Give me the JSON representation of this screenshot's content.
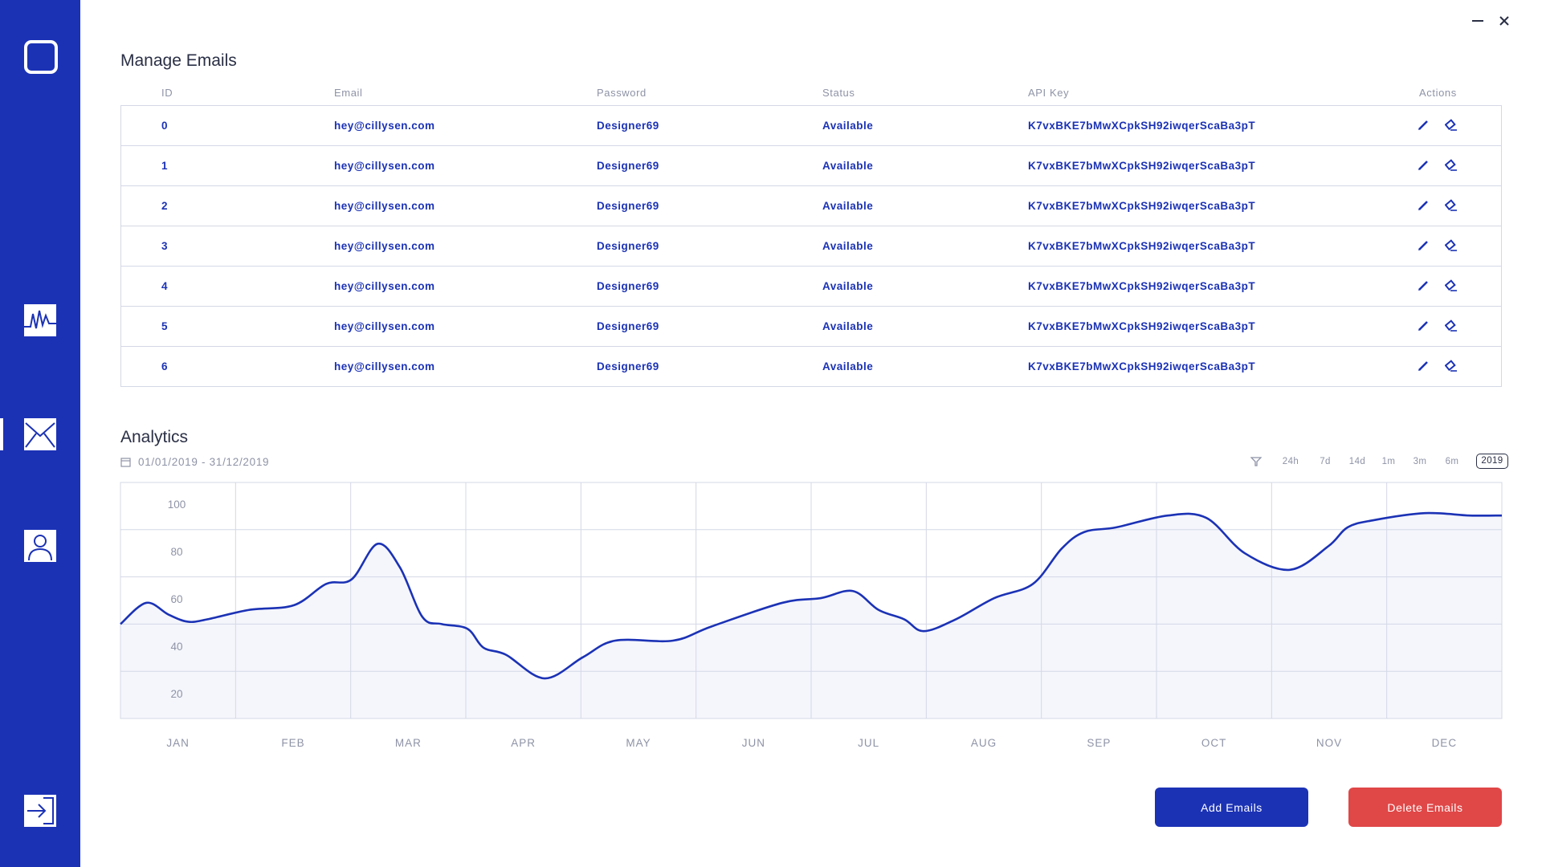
{
  "sidebar": {
    "items": [
      {
        "icon": "logo-icon"
      },
      {
        "icon": "activity-icon"
      },
      {
        "icon": "mail-icon",
        "active": true
      },
      {
        "icon": "user-icon"
      },
      {
        "icon": "logout-icon"
      }
    ],
    "accent": "#1b32b5"
  },
  "window": {
    "controls": [
      "minimize-icon",
      "close-icon"
    ]
  },
  "emails": {
    "title": "Manage Emails",
    "columns": [
      "ID",
      "Email",
      "Password",
      "Status",
      "API Key",
      "Actions"
    ],
    "rows": [
      {
        "id": "0",
        "email": "hey@cillysen.com",
        "password": "Designer69",
        "status": "Available",
        "api_key": "K7vxBKE7bMwXCpkSH92iwqerScaBa3pT"
      },
      {
        "id": "1",
        "email": "hey@cillysen.com",
        "password": "Designer69",
        "status": "Available",
        "api_key": "K7vxBKE7bMwXCpkSH92iwqerScaBa3pT"
      },
      {
        "id": "2",
        "email": "hey@cillysen.com",
        "password": "Designer69",
        "status": "Available",
        "api_key": "K7vxBKE7bMwXCpkSH92iwqerScaBa3pT"
      },
      {
        "id": "3",
        "email": "hey@cillysen.com",
        "password": "Designer69",
        "status": "Available",
        "api_key": "K7vxBKE7bMwXCpkSH92iwqerScaBa3pT"
      },
      {
        "id": "4",
        "email": "hey@cillysen.com",
        "password": "Designer69",
        "status": "Available",
        "api_key": "K7vxBKE7bMwXCpkSH92iwqerScaBa3pT"
      },
      {
        "id": "5",
        "email": "hey@cillysen.com",
        "password": "Designer69",
        "status": "Available",
        "api_key": "K7vxBKE7bMwXCpkSH92iwqerScaBa3pT"
      },
      {
        "id": "6",
        "email": "hey@cillysen.com",
        "password": "Designer69",
        "status": "Available",
        "api_key": "K7vxBKE7bMwXCpkSH92iwqerScaBa3pT"
      }
    ],
    "row_actions": [
      "edit-icon",
      "erase-icon"
    ]
  },
  "analytics": {
    "title": "Analytics",
    "date_range": "01/01/2019 - 31/12/2019",
    "ranges": [
      "24h",
      "7d",
      "14d",
      "1m",
      "3m",
      "6m",
      "2019"
    ],
    "active_range": "2019"
  },
  "chart_data": {
    "type": "area",
    "x": [
      "JAN",
      "FEB",
      "MAR",
      "APR",
      "MAY",
      "JUN",
      "JUL",
      "AUG",
      "SEP",
      "OCT",
      "NOV",
      "DEC"
    ],
    "yticks": [
      20,
      40,
      60,
      80,
      100
    ],
    "ylim": [
      10,
      110
    ],
    "grid": true,
    "line_color": "#1b32b5",
    "points": [
      [
        0.0,
        50
      ],
      [
        0.4,
        59
      ],
      [
        0.75,
        54
      ],
      [
        1.05,
        51
      ],
      [
        1.35,
        52
      ],
      [
        2.0,
        56
      ],
      [
        2.7,
        58
      ],
      [
        3.2,
        67
      ],
      [
        3.6,
        69
      ],
      [
        4.0,
        84
      ],
      [
        4.35,
        74
      ],
      [
        4.7,
        53
      ],
      [
        5.0,
        50
      ],
      [
        5.4,
        48
      ],
      [
        5.65,
        40
      ],
      [
        6.0,
        37
      ],
      [
        6.6,
        27
      ],
      [
        7.2,
        36
      ],
      [
        7.7,
        43
      ],
      [
        8.6,
        43
      ],
      [
        9.2,
        49
      ],
      [
        10.3,
        59
      ],
      [
        10.9,
        61
      ],
      [
        11.4,
        64
      ],
      [
        11.8,
        56
      ],
      [
        12.2,
        52
      ],
      [
        12.5,
        47
      ],
      [
        13.0,
        52
      ],
      [
        13.6,
        61
      ],
      [
        14.2,
        67
      ],
      [
        14.65,
        82
      ],
      [
        15.0,
        89
      ],
      [
        15.5,
        91
      ],
      [
        16.3,
        96
      ],
      [
        16.9,
        95
      ],
      [
        17.5,
        80
      ],
      [
        18.2,
        73
      ],
      [
        18.8,
        83
      ],
      [
        19.1,
        91
      ],
      [
        19.5,
        94
      ],
      [
        20.3,
        97
      ],
      [
        21.0,
        96
      ],
      [
        21.5,
        96
      ]
    ],
    "months_span": 12
  },
  "buttons": {
    "add": "Add Emails",
    "delete": "Delete Emails"
  }
}
